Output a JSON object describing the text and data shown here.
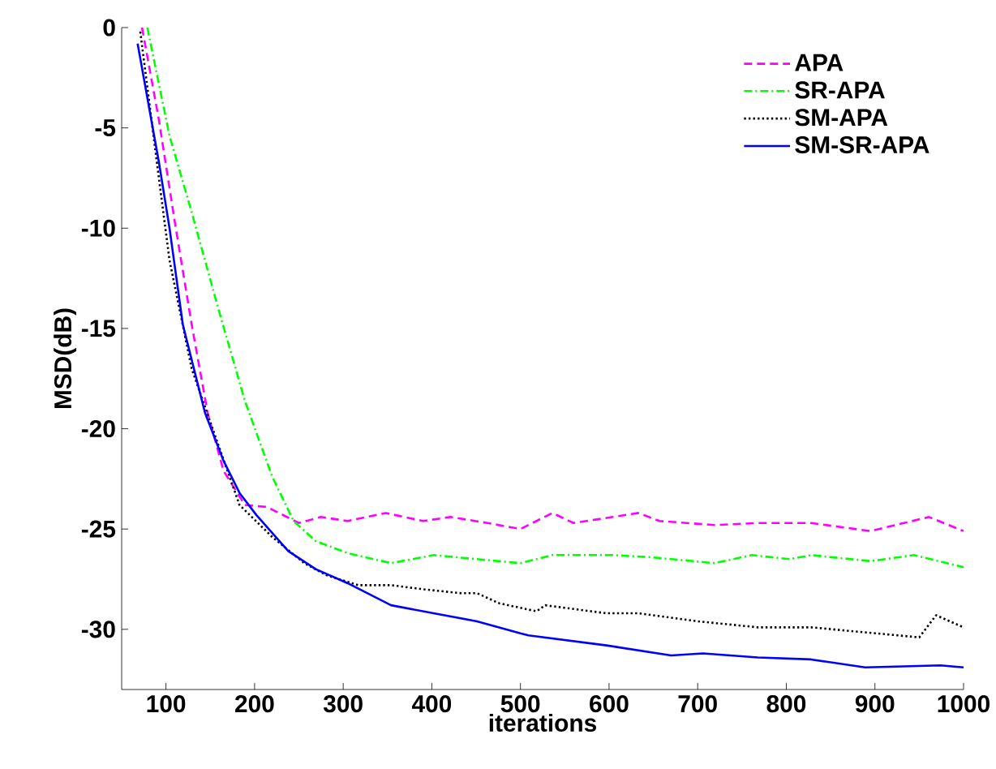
{
  "chart_data": {
    "type": "line",
    "xlabel": "iterations",
    "ylabel": "MSD(dB)",
    "xlim": [
      50,
      1000
    ],
    "ylim": [
      -33,
      0
    ],
    "xticks": [
      100,
      200,
      300,
      400,
      500,
      600,
      700,
      800,
      900,
      1000
    ],
    "yticks": [
      -30,
      -25,
      -20,
      -15,
      -10,
      -5,
      0
    ],
    "legend": "top right",
    "grid": false,
    "series": [
      {
        "name": "APA",
        "color": "#ff00ff",
        "line_style": "dashed",
        "x": [
          73,
          92,
          110,
          129,
          147,
          165,
          189,
          214,
          250,
          275,
          305,
          348,
          390,
          421,
          463,
          500,
          536,
          560,
          604,
          633,
          657,
          719,
          768,
          828,
          895,
          961,
          1000
        ],
        "values": [
          0,
          -4.6,
          -9.7,
          -14.8,
          -19.2,
          -22.1,
          -23.8,
          -23.9,
          -24.7,
          -24.4,
          -24.6,
          -24.2,
          -24.6,
          -24.4,
          -24.7,
          -25,
          -24.2,
          -24.7,
          -24.4,
          -24.2,
          -24.6,
          -24.8,
          -24.7,
          -24.7,
          -25.1,
          -24.4,
          -25.1
        ]
      },
      {
        "name": "SR-APA",
        "color": "#00ff00",
        "line_style": "dashdotted",
        "x": [
          79,
          104,
          129,
          159,
          189,
          220,
          244,
          269,
          305,
          354,
          402,
          451,
          500,
          536,
          604,
          646,
          719,
          761,
          804,
          828,
          895,
          944,
          1000
        ],
        "values": [
          0,
          -5.4,
          -9.2,
          -14,
          -18.6,
          -22.4,
          -24.6,
          -25.6,
          -26.2,
          -26.7,
          -26.3,
          -26.5,
          -26.7,
          -26.3,
          -26.3,
          -26.4,
          -26.7,
          -26.3,
          -26.5,
          -26.3,
          -26.6,
          -26.3,
          -26.9
        ]
      },
      {
        "name": "SM-APA",
        "color": "#000000",
        "line_style": "dotted",
        "x": [
          71,
          92,
          104,
          129,
          159,
          183,
          220,
          256,
          281,
          317,
          354,
          390,
          433,
          451,
          476,
          518,
          528,
          597,
          633,
          700,
          768,
          828,
          901,
          950,
          969,
          1000
        ],
        "values": [
          -0.2,
          -7.5,
          -11.6,
          -17,
          -20.8,
          -23.8,
          -25.4,
          -26.7,
          -27.3,
          -27.8,
          -27.8,
          -28,
          -28.2,
          -28.2,
          -28.7,
          -29.1,
          -28.8,
          -29.2,
          -29.2,
          -29.6,
          -29.9,
          -29.9,
          -30.2,
          -30.4,
          -29.3,
          -29.9
        ]
      },
      {
        "name": "SM-SR-APA",
        "color": "#0000ff",
        "line_style": "solid",
        "x": [
          68,
          92,
          104,
          119,
          144,
          165,
          183,
          202,
          238,
          269,
          305,
          354,
          402,
          451,
          500,
          509,
          597,
          670,
          706,
          768,
          828,
          889,
          974,
          1000
        ],
        "values": [
          -0.8,
          -6.7,
          -10,
          -14.8,
          -19.2,
          -21.6,
          -23.2,
          -24.3,
          -26.1,
          -27,
          -27.7,
          -28.8,
          -29.2,
          -29.6,
          -30.2,
          -30.3,
          -30.8,
          -31.3,
          -31.2,
          -31.4,
          -31.5,
          -31.9,
          -31.8,
          -31.9
        ]
      }
    ]
  }
}
